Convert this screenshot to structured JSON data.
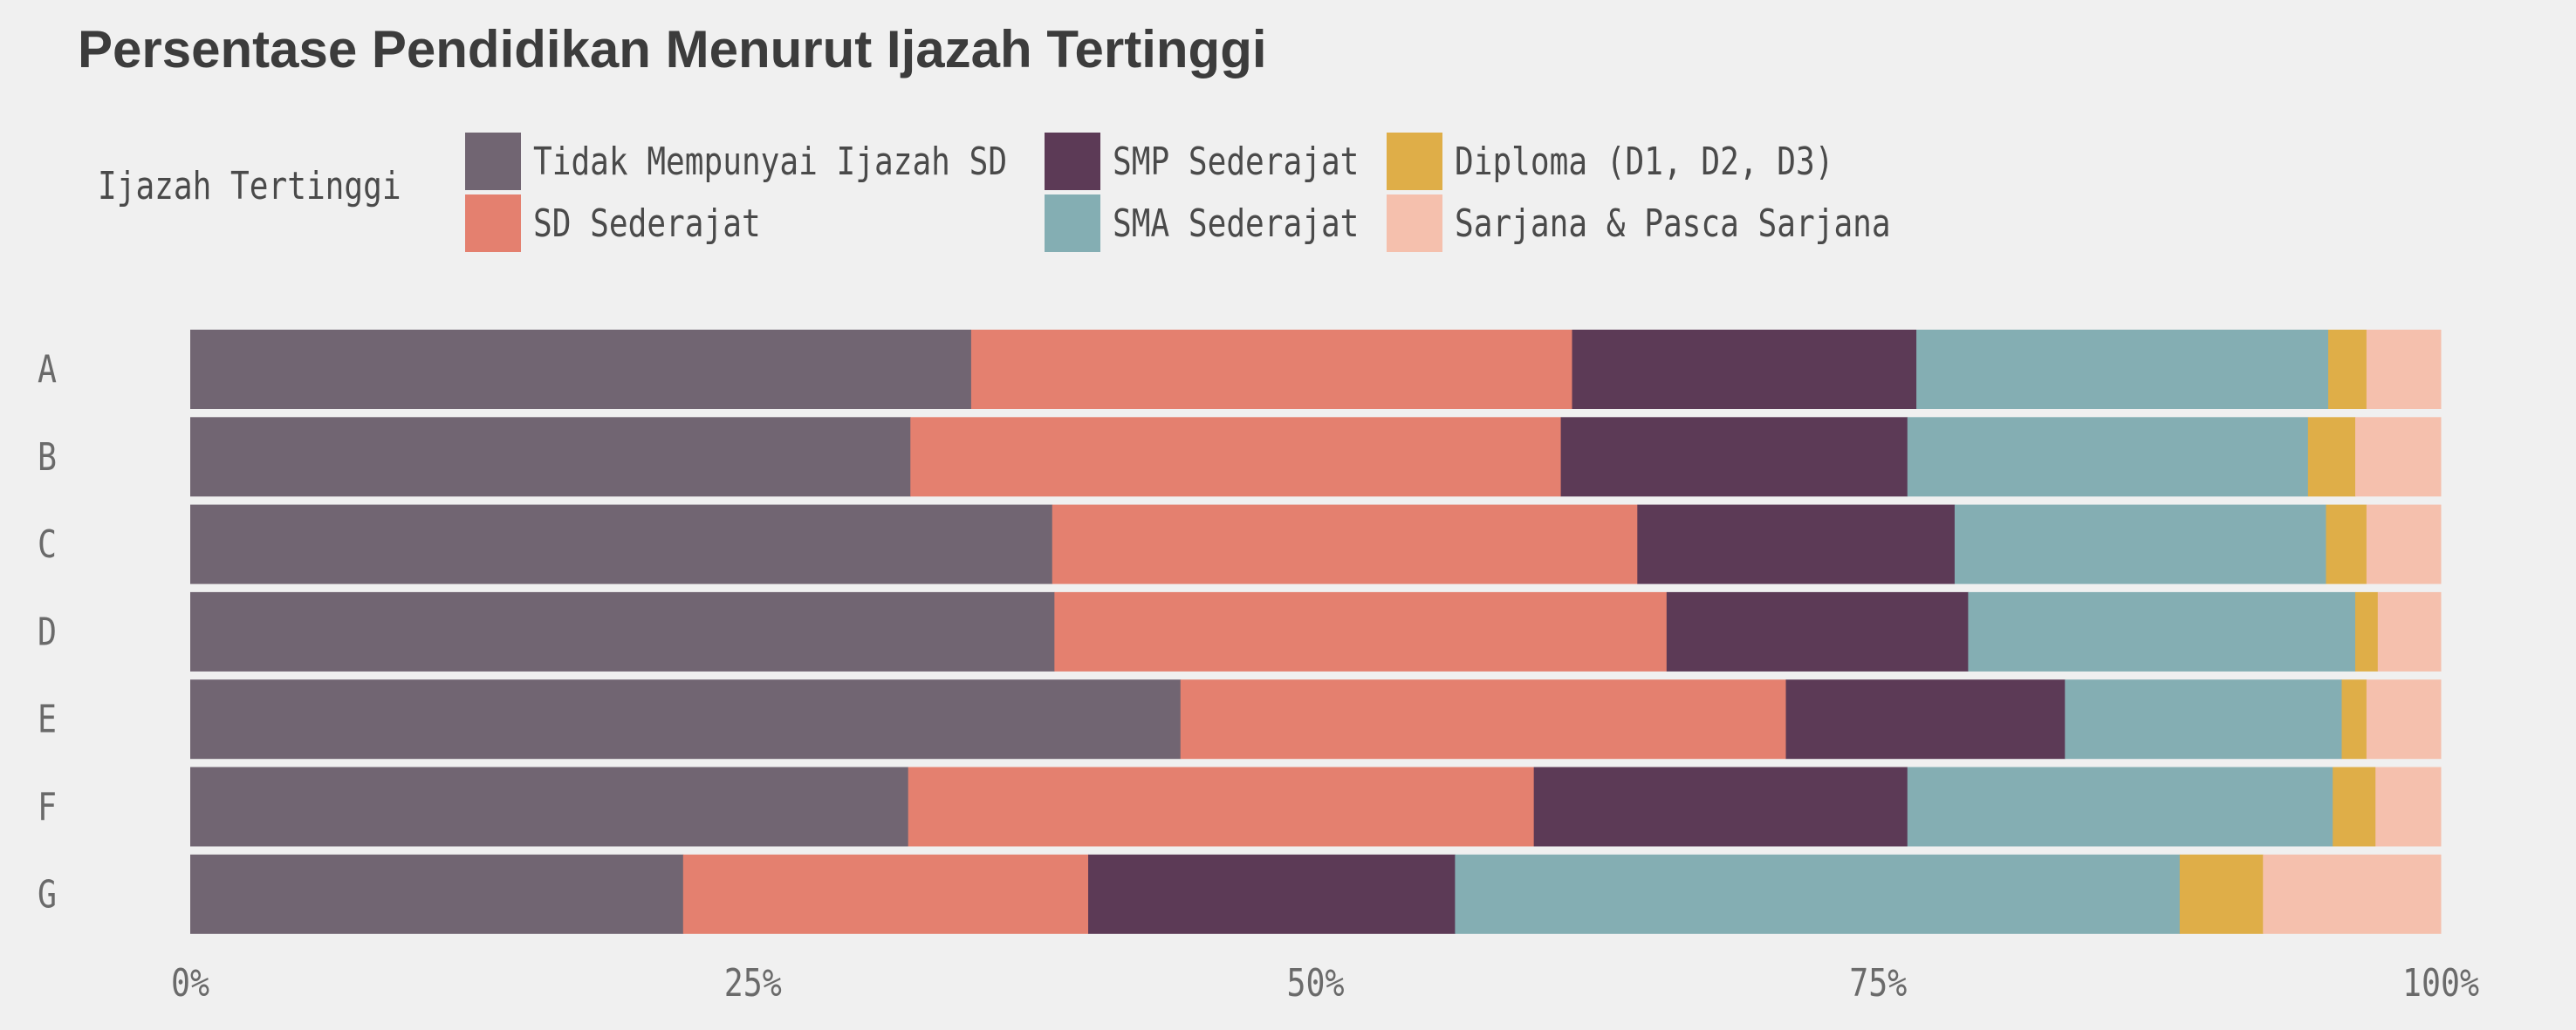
{
  "chart_data": {
    "type": "bar",
    "orientation": "horizontal",
    "stacked": true,
    "normalized": true,
    "title": "Persentase Pendidikan Menurut Ijazah Tertinggi",
    "legend_title": "Ijazah Tertinggi",
    "legend_position": "top",
    "categories": [
      "A",
      "B",
      "C",
      "D",
      "E",
      "F",
      "G"
    ],
    "series": [
      {
        "name": "Tidak Mempunyai Ijazah SD",
        "color": "#716572",
        "values": [
          34.7,
          32.0,
          38.3,
          38.4,
          44.0,
          31.9,
          21.9
        ]
      },
      {
        "name": "SD Sederajat",
        "color": "#e4806f",
        "values": [
          26.7,
          28.9,
          26.0,
          27.2,
          26.9,
          27.8,
          18.0
        ]
      },
      {
        "name": "SMP Sederajat",
        "color": "#5c3a56",
        "values": [
          15.3,
          15.4,
          14.1,
          13.4,
          12.4,
          16.6,
          16.3
        ]
      },
      {
        "name": "SMA Sederajat",
        "color": "#84aeb3",
        "values": [
          18.3,
          17.8,
          16.5,
          17.2,
          12.3,
          18.9,
          32.2
        ]
      },
      {
        "name": "Diploma (D1, D2, D3)",
        "color": "#dfae48",
        "values": [
          1.7,
          2.1,
          1.8,
          1.0,
          1.1,
          1.9,
          3.7
        ]
      },
      {
        "name": "Sarjana & Pasca Sarjana",
        "color": "#f5c0ad",
        "values": [
          3.3,
          3.8,
          3.3,
          2.8,
          3.3,
          2.9,
          7.9
        ]
      }
    ],
    "x_ticks": [
      "0%",
      "25%",
      "50%",
      "75%",
      "100%"
    ],
    "xlim": [
      0,
      100
    ],
    "grid": false
  }
}
